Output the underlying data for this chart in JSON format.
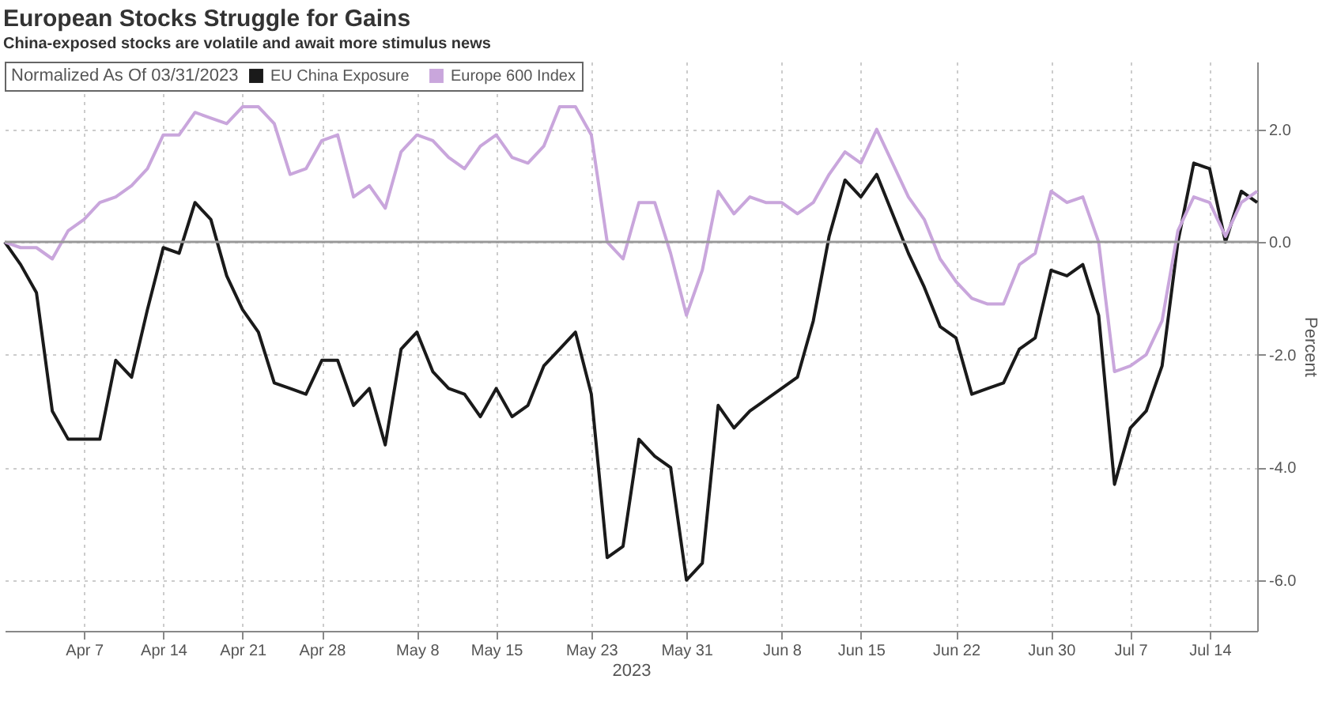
{
  "chart_data": {
    "type": "line",
    "title": "European Stocks Struggle for Gains",
    "subtitle": "China-exposed stocks are volatile and await more stimulus news",
    "legend_title": "Normalized As Of 03/31/2023",
    "legend": "top left",
    "xlabel": "2023",
    "ylabel": "Percent",
    "categories": [
      null,
      null,
      null,
      null,
      null,
      "Apr 7",
      null,
      null,
      null,
      null,
      "Apr 14",
      null,
      null,
      null,
      null,
      "Apr 21",
      null,
      null,
      null,
      null,
      "Apr 28",
      null,
      null,
      null,
      null,
      null,
      "May 8",
      null,
      null,
      null,
      null,
      "May 15",
      null,
      null,
      null,
      null,
      null,
      "May 23",
      null,
      null,
      null,
      null,
      null,
      "May 31",
      null,
      null,
      null,
      null,
      null,
      "Jun 8",
      null,
      null,
      null,
      null,
      "Jun 15",
      null,
      null,
      null,
      null,
      null,
      "Jun 22",
      null,
      null,
      null,
      null,
      null,
      "Jun 30",
      null,
      null,
      null,
      null,
      "Jul 7",
      null,
      null,
      null,
      null,
      "Jul 14",
      null,
      null,
      null
    ],
    "series": [
      {
        "name": "EU China Exposure",
        "color": "#1a1a1a",
        "values": [
          0.0,
          -0.4,
          -0.9,
          -3.0,
          -3.5,
          -3.5,
          -3.5,
          -2.1,
          -2.4,
          -1.2,
          -0.1,
          -0.2,
          0.7,
          0.4,
          -0.6,
          -1.2,
          -1.6,
          -2.5,
          -2.6,
          -2.7,
          -2.1,
          -2.1,
          -2.9,
          -2.6,
          -3.6,
          -1.9,
          -1.6,
          -2.3,
          -2.6,
          -2.7,
          -3.1,
          -2.6,
          -3.1,
          -2.9,
          -2.2,
          -1.9,
          -1.6,
          -2.7,
          -5.6,
          -5.4,
          -3.5,
          -3.8,
          -4.0,
          -6.0,
          -5.7,
          -2.9,
          -3.3,
          -3.0,
          -2.8,
          -2.6,
          -2.4,
          -1.4,
          0.1,
          1.1,
          0.8,
          1.2,
          0.5,
          -0.2,
          -0.8,
          -1.5,
          -1.7,
          -2.7,
          -2.6,
          -2.5,
          -1.9,
          -1.7,
          -0.5,
          -0.6,
          -0.4,
          -1.3,
          -4.3,
          -3.3,
          -3.0,
          -2.2,
          0.0,
          1.4,
          1.3,
          0.0,
          0.9,
          0.7
        ]
      },
      {
        "name": "Europe 600 Index",
        "color": "#c9a6dc",
        "values": [
          0.0,
          -0.1,
          -0.1,
          -0.3,
          0.2,
          0.4,
          0.7,
          0.8,
          1.0,
          1.3,
          1.9,
          1.9,
          2.3,
          2.2,
          2.1,
          2.4,
          2.4,
          2.1,
          1.2,
          1.3,
          1.8,
          1.9,
          0.8,
          1.0,
          0.6,
          1.6,
          1.9,
          1.8,
          1.5,
          1.3,
          1.7,
          1.9,
          1.5,
          1.4,
          1.7,
          2.4,
          2.4,
          1.9,
          0.0,
          -0.3,
          0.7,
          0.7,
          -0.2,
          -1.3,
          -0.5,
          0.9,
          0.5,
          0.8,
          0.7,
          0.7,
          0.5,
          0.7,
          1.2,
          1.6,
          1.4,
          2.0,
          1.4,
          0.8,
          0.4,
          -0.3,
          -0.7,
          -1.0,
          -1.1,
          -1.1,
          -0.4,
          -0.2,
          0.9,
          0.7,
          0.8,
          0.0,
          -2.3,
          -2.2,
          -2.0,
          -1.4,
          0.2,
          0.8,
          0.7,
          0.1,
          0.7,
          0.9
        ]
      }
    ],
    "ylim": [
      -6.9,
      3.2
    ],
    "yticks": [
      {
        "value": -6,
        "label": "-6.0"
      },
      {
        "value": -4,
        "label": "-4.0"
      },
      {
        "value": -2,
        "label": "-2.0"
      },
      {
        "value": 0,
        "label": "0.0"
      },
      {
        "value": 2,
        "label": "2.0"
      }
    ],
    "ref_lines": [
      {
        "axis": "y",
        "value": 0,
        "color": "#999999"
      }
    ],
    "grid": true,
    "line_style": "solid",
    "marker": "none"
  }
}
